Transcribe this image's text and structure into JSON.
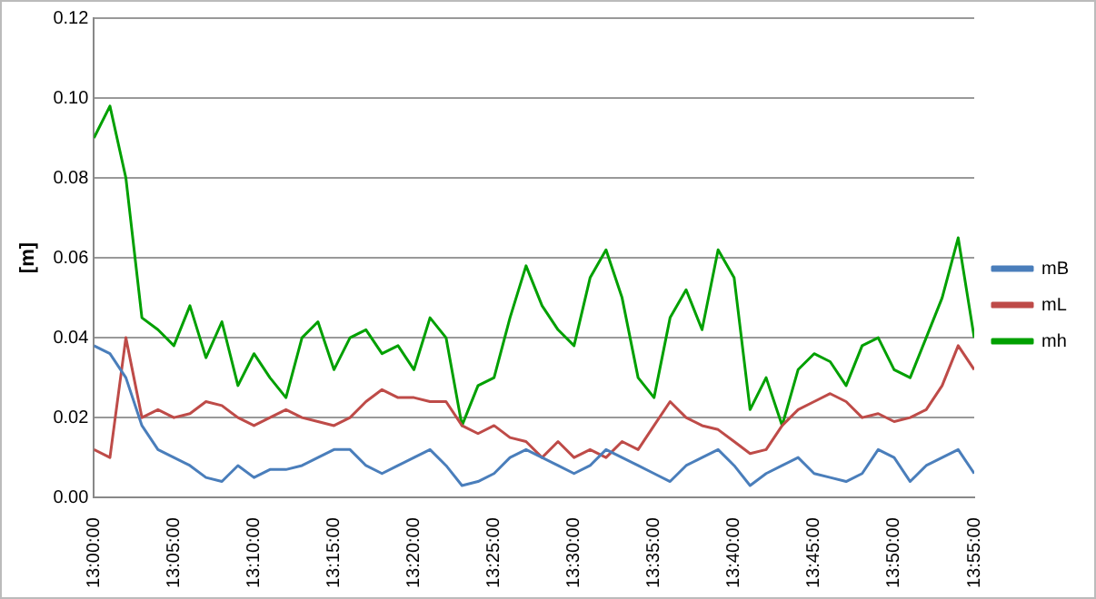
{
  "chart_data": {
    "type": "line",
    "ylabel": "[m]",
    "x": [
      13,
      13.0167,
      13.0333,
      13.05,
      13.0667,
      13.0833,
      13.1,
      13.1167,
      13.1333,
      13.15,
      13.1667,
      13.1833,
      13.2,
      13.2167,
      13.2333,
      13.25,
      13.2667,
      13.2833,
      13.3,
      13.3167,
      13.3333,
      13.35,
      13.3667,
      13.3833,
      13.4,
      13.4167,
      13.4333,
      13.45,
      13.4667,
      13.4833,
      13.5,
      13.5167,
      13.5333,
      13.55,
      13.5667,
      13.5833,
      13.6,
      13.6167,
      13.6333,
      13.65,
      13.6667,
      13.6833,
      13.7,
      13.7167,
      13.7333,
      13.75,
      13.7667,
      13.7833,
      13.8,
      13.8167,
      13.8333,
      13.85,
      13.8667,
      13.8833,
      13.9,
      13.9167
    ],
    "series": [
      {
        "name": "mB",
        "color": "#4a7ebb",
        "values": [
          0.038,
          0.036,
          0.03,
          0.018,
          0.012,
          0.01,
          0.008,
          0.005,
          0.004,
          0.008,
          0.005,
          0.007,
          0.007,
          0.008,
          0.01,
          0.012,
          0.012,
          0.008,
          0.006,
          0.008,
          0.01,
          0.012,
          0.008,
          0.003,
          0.004,
          0.006,
          0.01,
          0.012,
          0.01,
          0.008,
          0.006,
          0.008,
          0.012,
          0.01,
          0.008,
          0.006,
          0.004,
          0.008,
          0.01,
          0.012,
          0.008,
          0.003,
          0.006,
          0.008,
          0.01,
          0.006,
          0.005,
          0.004,
          0.006,
          0.012,
          0.01,
          0.004,
          0.008,
          0.01,
          0.012,
          0.006
        ]
      },
      {
        "name": "mL",
        "color": "#be4b48",
        "values": [
          0.012,
          0.01,
          0.04,
          0.02,
          0.022,
          0.02,
          0.021,
          0.024,
          0.023,
          0.02,
          0.018,
          0.02,
          0.022,
          0.02,
          0.019,
          0.018,
          0.02,
          0.024,
          0.027,
          0.025,
          0.025,
          0.024,
          0.024,
          0.018,
          0.016,
          0.018,
          0.015,
          0.014,
          0.01,
          0.014,
          0.01,
          0.012,
          0.01,
          0.014,
          0.012,
          0.018,
          0.024,
          0.02,
          0.018,
          0.017,
          0.014,
          0.011,
          0.012,
          0.018,
          0.022,
          0.024,
          0.026,
          0.024,
          0.02,
          0.021,
          0.019,
          0.02,
          0.022,
          0.028,
          0.038,
          0.032
        ]
      },
      {
        "name": "mh",
        "color": "#00a000",
        "values": [
          0.09,
          0.098,
          0.08,
          0.045,
          0.042,
          0.038,
          0.048,
          0.035,
          0.044,
          0.028,
          0.036,
          0.03,
          0.025,
          0.04,
          0.044,
          0.032,
          0.04,
          0.042,
          0.036,
          0.038,
          0.032,
          0.045,
          0.04,
          0.018,
          0.028,
          0.03,
          0.045,
          0.058,
          0.048,
          0.042,
          0.038,
          0.055,
          0.062,
          0.05,
          0.03,
          0.025,
          0.045,
          0.052,
          0.042,
          0.062,
          0.055,
          0.022,
          0.03,
          0.018,
          0.032,
          0.036,
          0.034,
          0.028,
          0.038,
          0.04,
          0.032,
          0.03,
          0.04,
          0.05,
          0.065,
          0.04
        ]
      }
    ],
    "xlim": [
      13,
      13.9167
    ],
    "xticks": [
      {
        "value": 13,
        "label": "13:00:00"
      },
      {
        "value": 13.0833,
        "label": "13:05:00"
      },
      {
        "value": 13.1667,
        "label": "13:10:00"
      },
      {
        "value": 13.25,
        "label": "13:15:00"
      },
      {
        "value": 13.3333,
        "label": "13:20:00"
      },
      {
        "value": 13.4167,
        "label": "13:25:00"
      },
      {
        "value": 13.5,
        "label": "13:30:00"
      },
      {
        "value": 13.5833,
        "label": "13:35:00"
      },
      {
        "value": 13.6667,
        "label": "13:40:00"
      },
      {
        "value": 13.75,
        "label": "13:45:00"
      },
      {
        "value": 13.8333,
        "label": "13:50:00"
      },
      {
        "value": 13.9167,
        "label": "13:55:00"
      }
    ],
    "ylim": [
      0,
      0.12
    ],
    "yticks": [
      {
        "value": 0,
        "label": "0.00"
      },
      {
        "value": 0.02,
        "label": "0.02"
      },
      {
        "value": 0.04,
        "label": "0.04"
      },
      {
        "value": 0.06,
        "label": "0.06"
      },
      {
        "value": 0.08,
        "label": "0.08"
      },
      {
        "value": 0.1,
        "label": "0.10"
      },
      {
        "value": 0.12,
        "label": "0.12"
      }
    ],
    "grid": "y",
    "legend": "right",
    "marker": "none",
    "line_style": "solid"
  }
}
